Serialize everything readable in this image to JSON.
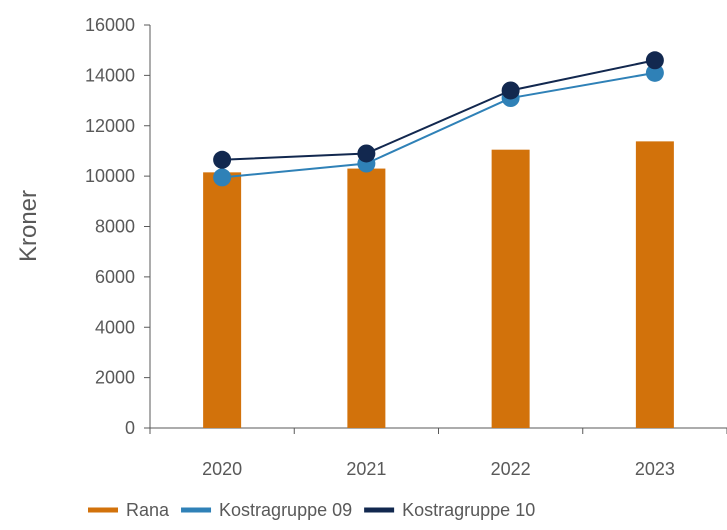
{
  "chart_data": {
    "type": "bar",
    "categories": [
      "2020",
      "2021",
      "2022",
      "2023"
    ],
    "series": [
      {
        "name": "Rana",
        "type": "bar",
        "color": "#d2720b",
        "values": [
          10150,
          10300,
          11050,
          11380
        ]
      },
      {
        "name": "Kostragruppe 09",
        "type": "line",
        "color": "#2f81b7",
        "values": [
          9950,
          10500,
          13100,
          14100
        ]
      },
      {
        "name": "Kostragruppe 10",
        "type": "line",
        "color": "#12284f",
        "values": [
          10650,
          10900,
          13400,
          14600
        ]
      }
    ],
    "title": "",
    "xlabel": "",
    "ylabel": "Kroner",
    "ylim": [
      0,
      16000
    ],
    "yticks": [
      "0",
      "2000",
      "4000",
      "6000",
      "8000",
      "10000",
      "12000",
      "14000",
      "16000"
    ],
    "grid": false,
    "legend_position": "bottom"
  }
}
